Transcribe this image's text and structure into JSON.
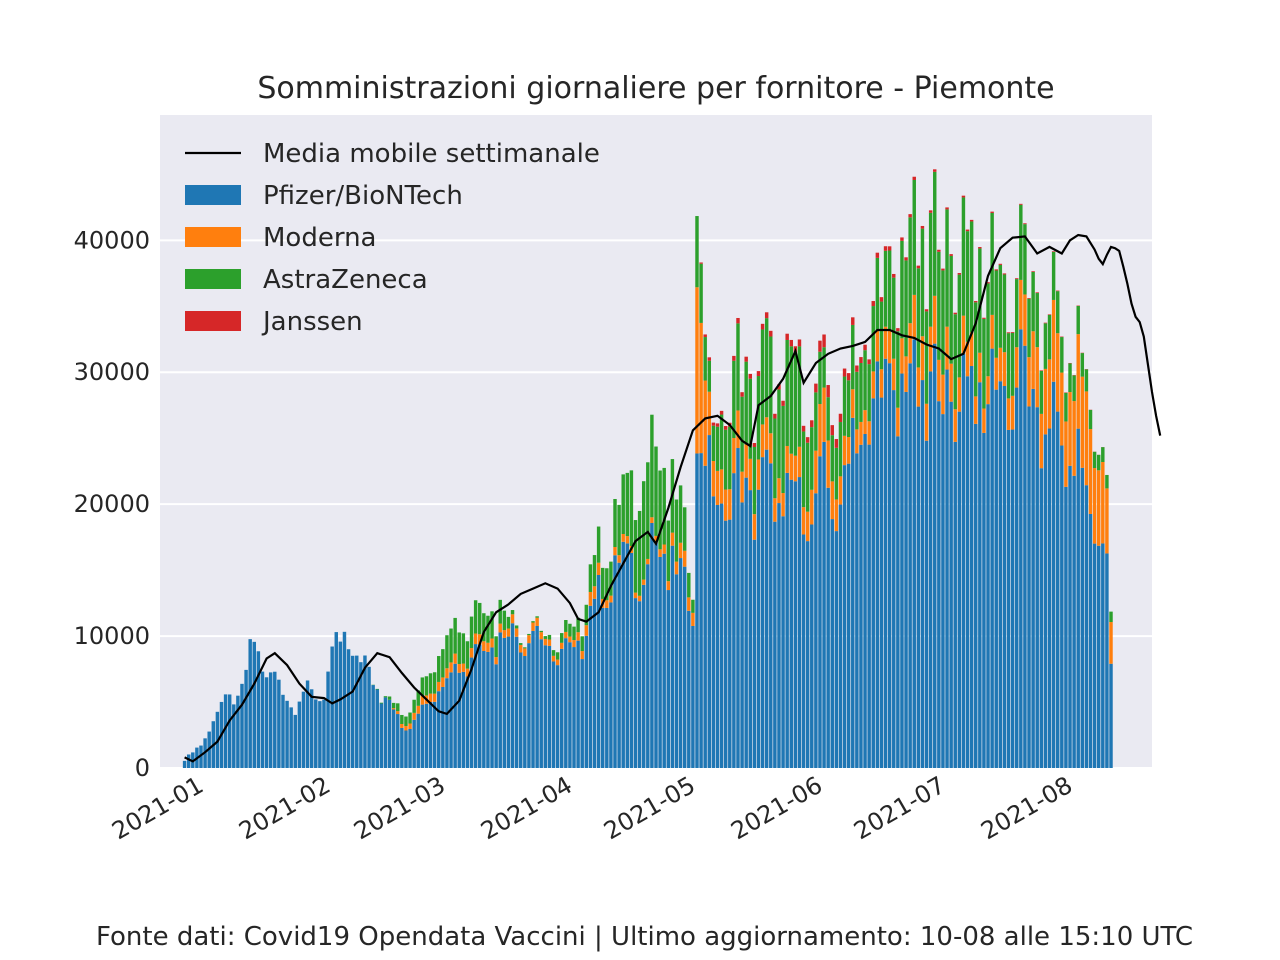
{
  "chart_data": {
    "type": "bar",
    "stacked": true,
    "title": "Somministrazioni giornaliere per fornitore - Piemonte",
    "xlabel": "",
    "ylabel": "",
    "ylim": [
      0,
      49500
    ],
    "yticks": [
      0,
      10000,
      20000,
      30000,
      40000
    ],
    "ytick_labels": [
      "0",
      "10000",
      "20000",
      "30000",
      "40000"
    ],
    "x_range": [
      "2020-12-21",
      "2021-08-20"
    ],
    "xticks": [
      "2021-01-01",
      "2021-02-01",
      "2021-03-01",
      "2021-04-01",
      "2021-05-01",
      "2021-06-01",
      "2021-07-01",
      "2021-08-01"
    ],
    "xtick_labels": [
      "2021-01",
      "2021-02",
      "2021-03",
      "2021-04",
      "2021-05",
      "2021-06",
      "2021-07",
      "2021-08"
    ],
    "grid": true,
    "legend_position": "top-left",
    "series": [
      {
        "name": "Pfizer/BioNTech",
        "color": "#1f77b4",
        "keyframes": [
          [
            "2020-12-27",
            600
          ],
          [
            "2020-12-31",
            1800
          ],
          [
            "2021-01-03",
            3800
          ],
          [
            "2021-01-07",
            5400
          ],
          [
            "2021-01-10",
            6000
          ],
          [
            "2021-01-13",
            9500
          ],
          [
            "2021-01-16",
            7600
          ],
          [
            "2021-01-19",
            6300
          ],
          [
            "2021-01-22",
            5000
          ],
          [
            "2021-01-25",
            5600
          ],
          [
            "2021-01-29",
            5600
          ],
          [
            "2021-02-02",
            8800
          ],
          [
            "2021-02-04",
            10100
          ],
          [
            "2021-02-07",
            8600
          ],
          [
            "2021-02-10",
            7100
          ],
          [
            "2021-02-14",
            5800
          ],
          [
            "2021-02-18",
            3100
          ],
          [
            "2021-02-20",
            3200
          ],
          [
            "2021-02-24",
            5100
          ],
          [
            "2021-02-28",
            6800
          ],
          [
            "2021-03-03",
            7600
          ],
          [
            "2021-03-07",
            8600
          ],
          [
            "2021-03-10",
            9600
          ],
          [
            "2021-03-14",
            9900
          ],
          [
            "2021-03-18",
            10400
          ],
          [
            "2021-03-21",
            10300
          ],
          [
            "2021-03-25",
            9700
          ],
          [
            "2021-03-28",
            8400
          ],
          [
            "2021-04-01",
            9000
          ],
          [
            "2021-04-04",
            11000
          ],
          [
            "2021-04-07",
            13200
          ],
          [
            "2021-04-10",
            14600
          ],
          [
            "2021-04-14",
            16000
          ],
          [
            "2021-04-17",
            14300
          ],
          [
            "2021-04-20",
            17200
          ],
          [
            "2021-04-24",
            16000
          ],
          [
            "2021-04-27",
            14000
          ],
          [
            "2021-04-30",
            13000
          ],
          [
            "2021-05-01",
            26500
          ],
          [
            "2021-05-04",
            21500
          ],
          [
            "2021-05-07",
            20500
          ],
          [
            "2021-05-10",
            21000
          ],
          [
            "2021-05-14",
            21500
          ],
          [
            "2021-05-18",
            21200
          ],
          [
            "2021-05-22",
            20800
          ],
          [
            "2021-05-26",
            20000
          ],
          [
            "2021-05-29",
            20600
          ],
          [
            "2021-06-01",
            21000
          ],
          [
            "2021-06-04",
            20200
          ],
          [
            "2021-06-07",
            24000
          ],
          [
            "2021-06-10",
            25500
          ],
          [
            "2021-06-13",
            28000
          ],
          [
            "2021-06-17",
            29500
          ],
          [
            "2021-06-21",
            29000
          ],
          [
            "2021-06-25",
            29200
          ],
          [
            "2021-06-29",
            28600
          ],
          [
            "2021-07-03",
            29000
          ],
          [
            "2021-07-07",
            29500
          ],
          [
            "2021-07-10",
            28800
          ],
          [
            "2021-07-13",
            28500
          ],
          [
            "2021-07-16",
            29800
          ],
          [
            "2021-07-19",
            29500
          ],
          [
            "2021-07-22",
            27500
          ],
          [
            "2021-07-25",
            26500
          ],
          [
            "2021-07-28",
            25000
          ],
          [
            "2021-08-01",
            24000
          ],
          [
            "2021-08-04",
            20500
          ],
          [
            "2021-08-07",
            18700
          ],
          [
            "2021-08-09",
            15500
          ],
          [
            "2021-08-10",
            8000
          ]
        ]
      },
      {
        "name": "Moderna",
        "color": "#ff7f0e",
        "keyframes": [
          [
            "2020-12-27",
            0
          ],
          [
            "2021-02-10",
            0
          ],
          [
            "2021-02-15",
            0
          ],
          [
            "2021-02-18",
            300
          ],
          [
            "2021-02-22",
            600
          ],
          [
            "2021-02-28",
            800
          ],
          [
            "2021-03-05",
            700
          ],
          [
            "2021-03-10",
            800
          ],
          [
            "2021-03-15",
            600
          ],
          [
            "2021-03-20",
            700
          ],
          [
            "2021-03-25",
            500
          ],
          [
            "2021-03-31",
            400
          ],
          [
            "2021-04-05",
            1000
          ],
          [
            "2021-04-10",
            600
          ],
          [
            "2021-04-15",
            500
          ],
          [
            "2021-04-20",
            400
          ],
          [
            "2021-04-25",
            900
          ],
          [
            "2021-04-30",
            1200
          ],
          [
            "2021-05-01",
            14000
          ],
          [
            "2021-05-04",
            2800
          ],
          [
            "2021-05-10",
            2500
          ],
          [
            "2021-05-15",
            2400
          ],
          [
            "2021-05-20",
            2000
          ],
          [
            "2021-05-25",
            1800
          ],
          [
            "2021-05-31",
            3500
          ],
          [
            "2021-06-02",
            3500
          ],
          [
            "2021-06-05",
            2300
          ],
          [
            "2021-06-10",
            1800
          ],
          [
            "2021-06-15",
            2200
          ],
          [
            "2021-06-20",
            2600
          ],
          [
            "2021-06-25",
            3300
          ],
          [
            "2021-06-30",
            3200
          ],
          [
            "2021-07-05",
            2700
          ],
          [
            "2021-07-10",
            2100
          ],
          [
            "2021-07-15",
            2600
          ],
          [
            "2021-07-20",
            3500
          ],
          [
            "2021-07-25",
            5200
          ],
          [
            "2021-07-30",
            5700
          ],
          [
            "2021-08-04",
            6800
          ],
          [
            "2021-08-08",
            6200
          ],
          [
            "2021-08-10",
            3200
          ]
        ]
      },
      {
        "name": "AstraZeneca",
        "color": "#2ca02c",
        "keyframes": [
          [
            "2020-12-27",
            0
          ],
          [
            "2021-02-10",
            0
          ],
          [
            "2021-02-14",
            100
          ],
          [
            "2021-02-18",
            700
          ],
          [
            "2021-02-21",
            1000
          ],
          [
            "2021-02-25",
            1700
          ],
          [
            "2021-03-01",
            2600
          ],
          [
            "2021-03-04",
            2600
          ],
          [
            "2021-03-08",
            2400
          ],
          [
            "2021-03-12",
            2200
          ],
          [
            "2021-03-15",
            1500
          ],
          [
            "2021-03-17",
            300
          ],
          [
            "2021-03-20",
            100
          ],
          [
            "2021-03-24",
            100
          ],
          [
            "2021-03-28",
            600
          ],
          [
            "2021-04-02",
            1100
          ],
          [
            "2021-04-06",
            2300
          ],
          [
            "2021-04-10",
            3000
          ],
          [
            "2021-04-14",
            4500
          ],
          [
            "2021-04-18",
            8200
          ],
          [
            "2021-04-22",
            6200
          ],
          [
            "2021-04-26",
            4700
          ],
          [
            "2021-04-30",
            1200
          ],
          [
            "2021-05-01",
            6000
          ],
          [
            "2021-05-04",
            2000
          ],
          [
            "2021-05-08",
            5000
          ],
          [
            "2021-05-12",
            6000
          ],
          [
            "2021-05-16",
            6400
          ],
          [
            "2021-05-20",
            6800
          ],
          [
            "2021-05-24",
            7600
          ],
          [
            "2021-05-28",
            6200
          ],
          [
            "2021-06-01",
            2600
          ],
          [
            "2021-06-04",
            4400
          ],
          [
            "2021-06-08",
            4500
          ],
          [
            "2021-06-12",
            4800
          ],
          [
            "2021-06-16",
            5400
          ],
          [
            "2021-06-20",
            7200
          ],
          [
            "2021-06-24",
            8000
          ],
          [
            "2021-06-28",
            8400
          ],
          [
            "2021-07-02",
            8500
          ],
          [
            "2021-07-06",
            8300
          ],
          [
            "2021-07-10",
            7700
          ],
          [
            "2021-07-14",
            6200
          ],
          [
            "2021-07-18",
            5300
          ],
          [
            "2021-07-22",
            4300
          ],
          [
            "2021-07-26",
            3400
          ],
          [
            "2021-07-30",
            2500
          ],
          [
            "2021-08-03",
            1700
          ],
          [
            "2021-08-07",
            1300
          ],
          [
            "2021-08-10",
            800
          ]
        ]
      },
      {
        "name": "Janssen",
        "color": "#d62728",
        "keyframes": [
          [
            "2020-12-27",
            0
          ],
          [
            "2021-04-28",
            0
          ],
          [
            "2021-05-01",
            0
          ],
          [
            "2021-05-03",
            200
          ],
          [
            "2021-05-10",
            350
          ],
          [
            "2021-05-20",
            400
          ],
          [
            "2021-05-28",
            500
          ],
          [
            "2021-06-02",
            900
          ],
          [
            "2021-06-06",
            600
          ],
          [
            "2021-06-12",
            400
          ],
          [
            "2021-06-20",
            250
          ],
          [
            "2021-06-30",
            150
          ],
          [
            "2021-07-10",
            100
          ],
          [
            "2021-07-20",
            60
          ],
          [
            "2021-08-01",
            30
          ],
          [
            "2021-08-10",
            0
          ]
        ]
      }
    ],
    "line": {
      "name": "Media mobile settimanale",
      "color": "#000000",
      "points": [
        [
          "2020-12-27",
          800
        ],
        [
          "2020-12-29",
          500
        ],
        [
          "2021-01-01",
          1200
        ],
        [
          "2021-01-04",
          2000
        ],
        [
          "2021-01-07",
          3600
        ],
        [
          "2021-01-10",
          4800
        ],
        [
          "2021-01-13",
          6400
        ],
        [
          "2021-01-16",
          8300
        ],
        [
          "2021-01-18",
          8700
        ],
        [
          "2021-01-21",
          7800
        ],
        [
          "2021-01-24",
          6400
        ],
        [
          "2021-01-27",
          5400
        ],
        [
          "2021-01-30",
          5300
        ],
        [
          "2021-02-01",
          4900
        ],
        [
          "2021-02-03",
          5200
        ],
        [
          "2021-02-06",
          5800
        ],
        [
          "2021-02-09",
          7600
        ],
        [
          "2021-02-12",
          8700
        ],
        [
          "2021-02-15",
          8400
        ],
        [
          "2021-02-18",
          7200
        ],
        [
          "2021-02-21",
          6100
        ],
        [
          "2021-02-24",
          5200
        ],
        [
          "2021-02-27",
          4300
        ],
        [
          "2021-03-01",
          4100
        ],
        [
          "2021-03-04",
          5100
        ],
        [
          "2021-03-07",
          7500
        ],
        [
          "2021-03-10",
          10300
        ],
        [
          "2021-03-13",
          11800
        ],
        [
          "2021-03-16",
          12400
        ],
        [
          "2021-03-19",
          13200
        ],
        [
          "2021-03-22",
          13600
        ],
        [
          "2021-03-25",
          14000
        ],
        [
          "2021-03-28",
          13600
        ],
        [
          "2021-03-31",
          12500
        ],
        [
          "2021-04-02",
          11300
        ],
        [
          "2021-04-04",
          11100
        ],
        [
          "2021-04-07",
          11800
        ],
        [
          "2021-04-10",
          13800
        ],
        [
          "2021-04-13",
          15500
        ],
        [
          "2021-04-16",
          17200
        ],
        [
          "2021-04-19",
          17900
        ],
        [
          "2021-04-21",
          17000
        ],
        [
          "2021-04-24",
          19700
        ],
        [
          "2021-04-27",
          22800
        ],
        [
          "2021-04-30",
          25600
        ],
        [
          "2021-05-03",
          26500
        ],
        [
          "2021-05-06",
          26700
        ],
        [
          "2021-05-09",
          26000
        ],
        [
          "2021-05-12",
          24800
        ],
        [
          "2021-05-14",
          24400
        ],
        [
          "2021-05-16",
          27500
        ],
        [
          "2021-05-19",
          28200
        ],
        [
          "2021-05-22",
          29500
        ],
        [
          "2021-05-25",
          31600
        ],
        [
          "2021-05-27",
          29200
        ],
        [
          "2021-05-30",
          30700
        ],
        [
          "2021-06-02",
          31400
        ],
        [
          "2021-06-05",
          31800
        ],
        [
          "2021-06-08",
          32000
        ],
        [
          "2021-06-11",
          32300
        ],
        [
          "2021-06-14",
          33200
        ],
        [
          "2021-06-17",
          33200
        ],
        [
          "2021-06-20",
          32800
        ],
        [
          "2021-06-23",
          32600
        ],
        [
          "2021-06-26",
          32100
        ],
        [
          "2021-06-29",
          31800
        ],
        [
          "2021-07-02",
          31000
        ],
        [
          "2021-07-05",
          31400
        ],
        [
          "2021-07-08",
          33700
        ],
        [
          "2021-07-11",
          37300
        ],
        [
          "2021-07-14",
          39400
        ],
        [
          "2021-07-17",
          40200
        ],
        [
          "2021-07-20",
          40300
        ],
        [
          "2021-07-23",
          39000
        ],
        [
          "2021-07-26",
          39500
        ],
        [
          "2021-07-29",
          39000
        ],
        [
          "2021-07-31",
          40000
        ],
        [
          "2021-08-02",
          40400
        ],
        [
          "2021-08-04",
          40300
        ],
        [
          "2021-08-06",
          39300
        ],
        [
          "2021-08-07",
          38600
        ],
        [
          "2021-08-08",
          38200
        ],
        [
          "2021-08-09",
          38900
        ],
        [
          "2021-08-10",
          39500
        ],
        [
          "2021-08-11",
          39400
        ],
        [
          "2021-08-12",
          39200
        ],
        [
          "2021-08-13",
          38000
        ],
        [
          "2021-08-14",
          36700
        ],
        [
          "2021-08-15",
          35200
        ],
        [
          "2021-08-16",
          34200
        ],
        [
          "2021-08-17",
          33800
        ],
        [
          "2021-08-18",
          32700
        ],
        [
          "2021-08-19",
          30600
        ],
        [
          "2021-08-20",
          28500
        ],
        [
          "2021-08-21",
          26700
        ],
        [
          "2021-08-22",
          25200
        ]
      ]
    }
  },
  "footer": {
    "source": "Fonte dati: Covid19 Opendata Vaccini | Ultimo aggiornamento: 10-08 alle 15:10 UTC"
  }
}
